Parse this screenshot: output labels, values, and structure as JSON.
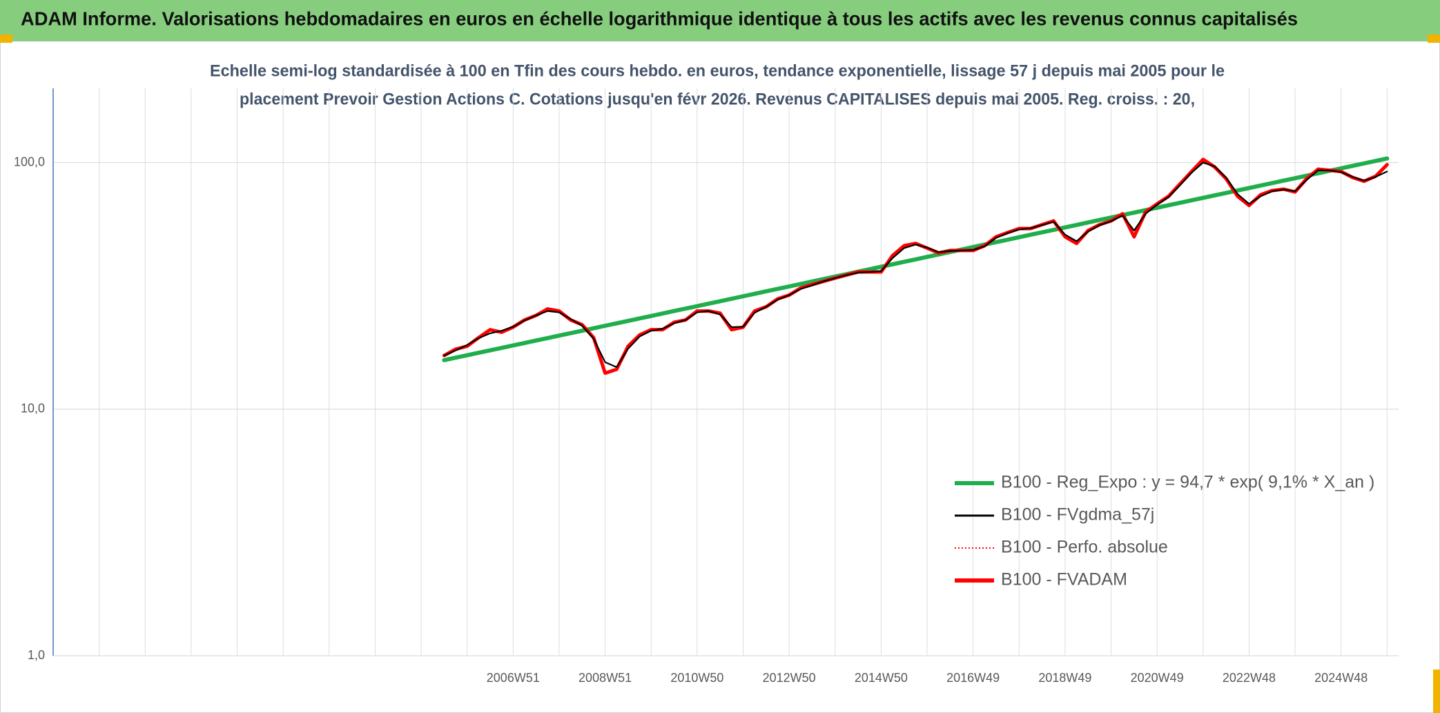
{
  "chart_data": {
    "type": "line",
    "title": "ADAM Informe. Valorisations hebdomadaires en euros en échelle logarithmique identique à tous les actifs avec les revenus connus capitalisés",
    "subtitle": [
      "Echelle semi-log standardisée à 100 en Tfin des cours hebdo. en euros, tendance exponentielle, lissage 57 j depuis mai 2005 pour le",
      "placement Prevoir Gestion Actions C. Cotations jusqu'en févr 2026. Revenus CAPITALISES depuis mai 2005. Reg. croiss. : 20,"
    ],
    "log_scale": true,
    "grid": true,
    "legend": "lower right",
    "ylim": [
      1,
      200
    ],
    "yticks": [
      {
        "value": 1,
        "label": "1,0"
      },
      {
        "value": 10,
        "label": "10,0"
      },
      {
        "value": 100,
        "label": "100,0"
      }
    ],
    "categories": [
      null,
      null,
      null,
      null,
      null,
      null,
      null,
      null,
      null,
      null,
      null,
      null,
      null,
      null,
      null,
      null,
      null,
      null,
      null,
      null,
      null,
      null,
      null,
      null,
      null,
      null,
      null,
      null,
      null,
      null,
      null,
      null,
      null,
      null,
      null,
      null,
      null,
      null,
      null,
      null,
      "2006W51",
      null,
      null,
      null,
      null,
      null,
      null,
      null,
      "2008W51",
      null,
      null,
      null,
      null,
      null,
      null,
      null,
      "2010W50",
      null,
      null,
      null,
      null,
      null,
      null,
      null,
      "2012W50",
      null,
      null,
      null,
      null,
      null,
      null,
      null,
      "2014W50",
      null,
      null,
      null,
      null,
      null,
      null,
      null,
      "2016W49",
      null,
      null,
      null,
      null,
      null,
      null,
      null,
      "2018W49",
      null,
      null,
      null,
      null,
      null,
      null,
      null,
      "2020W49",
      null,
      null,
      null,
      null,
      null,
      null,
      null,
      "2022W48",
      null,
      null,
      null,
      null,
      null,
      null,
      null,
      "2024W48",
      null,
      null,
      null,
      null
    ],
    "series": [
      {
        "name": "B100 - Reg_Expo : y = 94,7 * exp( 9,1% *  X_an )",
        "color": "#1fae4b",
        "values": [
          null,
          null,
          null,
          null,
          null,
          null,
          null,
          null,
          null,
          null,
          null,
          null,
          null,
          null,
          null,
          null,
          null,
          null,
          null,
          null,
          null,
          null,
          null,
          null,
          null,
          null,
          null,
          null,
          null,
          null,
          null,
          null,
          null,
          null,
          15.8,
          16.17,
          16.54,
          16.93,
          17.32,
          17.72,
          18.13,
          18.55,
          18.98,
          19.42,
          19.87,
          20.33,
          20.8,
          21.29,
          21.78,
          22.29,
          22.8,
          23.33,
          23.87,
          24.43,
          25.0,
          25.58,
          26.17,
          26.78,
          27.4,
          28.04,
          28.69,
          29.36,
          30.04,
          30.74,
          31.45,
          32.18,
          32.93,
          33.69,
          34.48,
          35.28,
          36.1,
          36.94,
          37.8,
          38.68,
          39.58,
          40.5,
          41.44,
          42.4,
          43.39,
          44.4,
          45.43,
          46.49,
          47.57,
          48.67,
          49.8,
          50.96,
          52.14,
          53.35,
          54.59,
          55.86,
          57.16,
          58.49,
          59.85,
          61.24,
          62.66,
          64.12,
          65.61,
          67.14,
          68.7,
          70.3,
          71.93,
          73.6,
          75.31,
          77.06,
          78.85,
          80.68,
          82.56,
          84.48,
          86.44,
          88.45,
          90.51,
          92.61,
          94.76,
          96.96,
          99.22,
          101.5,
          103.9
        ]
      },
      {
        "name": "B100 - FVgdma_57j",
        "color": "#000000",
        "values": [
          null,
          null,
          null,
          null,
          null,
          null,
          null,
          null,
          null,
          null,
          null,
          null,
          null,
          null,
          null,
          null,
          null,
          null,
          null,
          null,
          null,
          null,
          null,
          null,
          null,
          null,
          null,
          null,
          null,
          null,
          null,
          null,
          null,
          null,
          16.5,
          17.3,
          18.2,
          19.4,
          20.3,
          20.8,
          21.6,
          22.9,
          24,
          25,
          24.7,
          23.2,
          21.8,
          19.3,
          15.5,
          14.8,
          17.6,
          19.7,
          20.8,
          21.2,
          22.3,
          23,
          24.7,
          25,
          24.2,
          21.5,
          21.6,
          24.6,
          26,
          27.8,
          29,
          30.7,
          31.8,
          33,
          34,
          35,
          35.8,
          36,
          36.3,
          41,
          45,
          46.5,
          45.2,
          43.3,
          43.8,
          44,
          44.2,
          45.8,
          49.5,
          51.8,
          53.5,
          54.2,
          55.8,
          57.5,
          51,
          48,
          52.5,
          55.8,
          57.8,
          61,
          53,
          62,
          67.5,
          72.5,
          81,
          91,
          100,
          96.5,
          87,
          74.5,
          68,
          73,
          76.5,
          77.8,
          76.5,
          85,
          93,
          93,
          91.5,
          87.5,
          84.5,
          87.5,
          92
        ]
      },
      {
        "name": "B100 - Perfo. absolue",
        "color": "#ff0000",
        "dashed": true,
        "values": [
          null,
          null,
          null,
          null,
          null,
          null,
          null,
          null,
          null,
          null,
          null,
          null,
          null,
          null,
          null,
          null,
          null,
          null,
          null,
          null,
          null,
          null,
          null,
          null,
          null,
          null,
          null,
          null,
          null,
          null,
          null,
          null,
          null,
          null,
          16.5,
          17.5,
          18,
          19.5,
          21,
          20.5,
          21.5,
          23,
          24,
          25.5,
          25,
          23,
          22,
          19.5,
          14,
          14.5,
          18,
          20,
          21,
          21,
          22.5,
          23,
          25,
          25,
          24.5,
          21,
          21.5,
          25,
          26,
          28,
          29,
          31,
          32,
          33,
          34,
          35,
          36,
          36,
          36,
          42,
          46,
          47,
          45,
          43,
          44,
          44,
          44,
          46,
          50,
          52,
          54,
          54,
          56,
          58,
          50,
          47,
          53,
          56,
          58,
          62,
          50,
          63,
          68,
          73,
          82,
          92,
          103,
          96,
          86,
          73,
          67,
          74,
          77,
          78,
          76,
          86,
          94,
          93,
          92,
          87,
          84,
          88,
          98
        ]
      },
      {
        "name": "B100 - FVADAM",
        "color": "#ff0000",
        "values": [
          null,
          null,
          null,
          null,
          null,
          null,
          null,
          null,
          null,
          null,
          null,
          null,
          null,
          null,
          null,
          null,
          null,
          null,
          null,
          null,
          null,
          null,
          null,
          null,
          null,
          null,
          null,
          null,
          null,
          null,
          null,
          null,
          null,
          null,
          16.5,
          17.5,
          18,
          19.5,
          21,
          20.5,
          21.5,
          23,
          24,
          25.5,
          25,
          23,
          22,
          19.5,
          14,
          14.5,
          18,
          20,
          21,
          21,
          22.5,
          23,
          25,
          25,
          24.5,
          21,
          21.5,
          25,
          26,
          28,
          29,
          31,
          32,
          33,
          34,
          35,
          36,
          36,
          36,
          42,
          46,
          47,
          45,
          43,
          44,
          44,
          44,
          46,
          50,
          52,
          54,
          54,
          56,
          58,
          50,
          47,
          53,
          56,
          58,
          62,
          50,
          63,
          68,
          73,
          82,
          92,
          103,
          96,
          86,
          73,
          67,
          74,
          77,
          78,
          76,
          86,
          94,
          93,
          92,
          87,
          84,
          88,
          98
        ]
      }
    ]
  }
}
